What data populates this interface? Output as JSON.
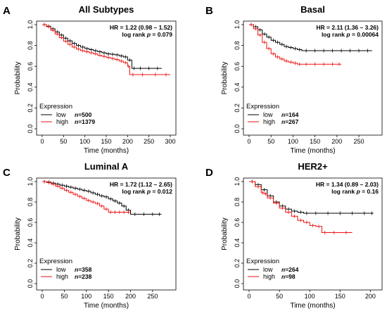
{
  "colors": {
    "low": "#000000",
    "high": "#ee1111",
    "axis": "#000000"
  },
  "chart_data": [
    {
      "type": "line",
      "panel_letter": "A",
      "title": "All Subtypes",
      "xlabel": "Time (months)",
      "ylabel": "Probability",
      "xlim": [
        0,
        300
      ],
      "ylim": [
        0,
        1
      ],
      "xticks": [
        0,
        50,
        100,
        150,
        200,
        250,
        300
      ],
      "xtick_labels": [
        "0",
        "50",
        "100",
        "150",
        "200",
        "250",
        "300"
      ],
      "yticks": [
        0,
        0.2,
        0.4,
        0.6,
        0.8,
        1.0
      ],
      "ytick_labels": [
        "0.0",
        "0.2",
        "0.4",
        "0.6",
        "0.8",
        "1.0"
      ],
      "hr_text": "HR = 1.22 (0.98 – 1.52)",
      "logrank_label": "log rank ",
      "logrank_p_label": "p",
      "logrank_value": " = 0.079",
      "legend": {
        "title": "Expression",
        "n_label": "n",
        "entries": [
          {
            "label": "low",
            "n": "=500"
          },
          {
            "label": "high",
            "n": "=1379"
          }
        ]
      },
      "series": [
        {
          "name": "low",
          "x": [
            0,
            10,
            20,
            30,
            40,
            50,
            60,
            70,
            80,
            90,
            100,
            110,
            120,
            130,
            140,
            150,
            160,
            170,
            180,
            190,
            200,
            210,
            220,
            240,
            260,
            280
          ],
          "y": [
            1.0,
            0.985,
            0.96,
            0.93,
            0.9,
            0.87,
            0.845,
            0.82,
            0.8,
            0.785,
            0.77,
            0.76,
            0.75,
            0.74,
            0.73,
            0.72,
            0.715,
            0.71,
            0.7,
            0.69,
            0.66,
            0.58,
            0.58,
            0.58,
            0.58,
            0.58
          ]
        },
        {
          "name": "high",
          "x": [
            0,
            10,
            20,
            30,
            40,
            50,
            60,
            70,
            80,
            90,
            100,
            110,
            120,
            130,
            140,
            150,
            160,
            170,
            180,
            190,
            200,
            205,
            220,
            250,
            280,
            300
          ],
          "y": [
            1.0,
            0.98,
            0.945,
            0.91,
            0.875,
            0.84,
            0.81,
            0.785,
            0.765,
            0.75,
            0.74,
            0.73,
            0.72,
            0.705,
            0.695,
            0.685,
            0.675,
            0.665,
            0.65,
            0.635,
            0.6,
            0.52,
            0.52,
            0.52,
            0.52,
            0.52
          ]
        }
      ]
    },
    {
      "type": "line",
      "panel_letter": "B",
      "title": "Basal",
      "xlabel": "Time (months)",
      "ylabel": "Probability",
      "xlim": [
        0,
        290
      ],
      "ylim": [
        0,
        1
      ],
      "xticks": [
        0,
        50,
        100,
        150,
        200,
        250
      ],
      "xtick_labels": [
        "0",
        "50",
        "100",
        "150",
        "200",
        "250"
      ],
      "yticks": [
        0,
        0.2,
        0.4,
        0.6,
        0.8,
        1.0
      ],
      "ytick_labels": [
        "0.0",
        "0.2",
        "0.4",
        "0.6",
        "0.8",
        "1.0"
      ],
      "hr_text": "HR = 2.11 (1.36 – 3.26)",
      "logrank_label": "log rank ",
      "logrank_p_label": "p",
      "logrank_value": " = 0.00064",
      "legend": {
        "title": "Expression",
        "n_label": "n",
        "entries": [
          {
            "label": "low",
            "n": "=164"
          },
          {
            "label": "high",
            "n": "=267"
          }
        ]
      },
      "series": [
        {
          "name": "low",
          "x": [
            0,
            10,
            20,
            30,
            40,
            50,
            60,
            70,
            80,
            90,
            100,
            110,
            120,
            140,
            160,
            180,
            200,
            220,
            240,
            260,
            280
          ],
          "y": [
            1.0,
            0.98,
            0.95,
            0.91,
            0.88,
            0.85,
            0.83,
            0.81,
            0.79,
            0.78,
            0.77,
            0.76,
            0.75,
            0.75,
            0.75,
            0.75,
            0.75,
            0.75,
            0.75,
            0.75,
            0.75
          ]
        },
        {
          "name": "high",
          "x": [
            0,
            10,
            20,
            30,
            40,
            50,
            60,
            70,
            80,
            90,
            100,
            110,
            120,
            140,
            160,
            180,
            200,
            210
          ],
          "y": [
            1.0,
            0.96,
            0.9,
            0.83,
            0.77,
            0.72,
            0.69,
            0.67,
            0.65,
            0.64,
            0.63,
            0.62,
            0.62,
            0.62,
            0.62,
            0.62,
            0.62,
            0.62
          ]
        }
      ]
    },
    {
      "type": "line",
      "panel_letter": "C",
      "title": "Luminal A",
      "xlabel": "Time (months)",
      "ylabel": "Probability",
      "xlim": [
        0,
        290
      ],
      "ylim": [
        0,
        1
      ],
      "xticks": [
        0,
        50,
        100,
        150,
        200,
        250
      ],
      "xtick_labels": [
        "0",
        "50",
        "100",
        "150",
        "200",
        "250"
      ],
      "yticks": [
        0,
        0.2,
        0.4,
        0.6,
        0.8,
        1.0
      ],
      "ytick_labels": [
        "0.0",
        "0.2",
        "0.4",
        "0.6",
        "0.8",
        "1.0"
      ],
      "hr_text": "HR = 1.72 (1.12 – 2.65)",
      "logrank_label": "log rank ",
      "logrank_p_label": "p",
      "logrank_value": " = 0.012",
      "legend": {
        "title": "Expression",
        "n_label": "n",
        "entries": [
          {
            "label": "low",
            "n": "=358"
          },
          {
            "label": "high",
            "n": "=238"
          }
        ]
      },
      "series": [
        {
          "name": "low",
          "x": [
            0,
            10,
            20,
            30,
            40,
            50,
            60,
            70,
            80,
            90,
            100,
            110,
            120,
            130,
            140,
            150,
            160,
            170,
            180,
            190,
            200,
            220,
            240,
            260,
            270
          ],
          "y": [
            1.0,
            0.995,
            0.985,
            0.975,
            0.965,
            0.955,
            0.945,
            0.935,
            0.925,
            0.915,
            0.905,
            0.89,
            0.875,
            0.86,
            0.85,
            0.83,
            0.81,
            0.79,
            0.76,
            0.72,
            0.68,
            0.68,
            0.68,
            0.68,
            0.68
          ]
        },
        {
          "name": "high",
          "x": [
            0,
            10,
            20,
            30,
            40,
            50,
            60,
            70,
            80,
            90,
            100,
            110,
            120,
            130,
            140,
            150,
            160,
            170,
            180,
            190,
            200
          ],
          "y": [
            1.0,
            0.99,
            0.975,
            0.955,
            0.935,
            0.915,
            0.895,
            0.875,
            0.855,
            0.835,
            0.815,
            0.8,
            0.785,
            0.76,
            0.73,
            0.7,
            0.7,
            0.7,
            0.7,
            0.7,
            0.7
          ]
        }
      ]
    },
    {
      "type": "line",
      "panel_letter": "D",
      "title": "HER2+",
      "xlabel": "Time (months)",
      "ylabel": "Probability",
      "xlim": [
        0,
        210
      ],
      "ylim": [
        0,
        1
      ],
      "xticks": [
        0,
        50,
        100,
        150,
        200
      ],
      "xtick_labels": [
        "0",
        "50",
        "100",
        "150",
        "200"
      ],
      "yticks": [
        0,
        0.2,
        0.4,
        0.6,
        0.8,
        1.0
      ],
      "ytick_labels": [
        "0.0",
        "0.2",
        "0.4",
        "0.6",
        "0.8",
        "1.0"
      ],
      "hr_text": "HR = 1.34 (0.89 – 2.03)",
      "logrank_label": "log rank ",
      "logrank_p_label": "p",
      "logrank_value": " = 0.16",
      "legend": {
        "title": "Expression",
        "n_label": "n",
        "entries": [
          {
            "label": "low",
            "n": "=264"
          },
          {
            "label": "high",
            "n": "=98"
          }
        ]
      },
      "series": [
        {
          "name": "low",
          "x": [
            0,
            10,
            20,
            30,
            40,
            50,
            60,
            70,
            80,
            90,
            100,
            120,
            140,
            160,
            180,
            200,
            205
          ],
          "y": [
            1.0,
            0.97,
            0.92,
            0.86,
            0.8,
            0.76,
            0.73,
            0.71,
            0.7,
            0.69,
            0.69,
            0.69,
            0.69,
            0.69,
            0.69,
            0.69,
            0.69
          ]
        },
        {
          "name": "high",
          "x": [
            0,
            10,
            20,
            25,
            30,
            40,
            50,
            60,
            70,
            80,
            90,
            100,
            110,
            120,
            130,
            150,
            170
          ],
          "y": [
            1.0,
            0.95,
            0.89,
            0.88,
            0.84,
            0.79,
            0.74,
            0.7,
            0.66,
            0.62,
            0.6,
            0.57,
            0.56,
            0.5,
            0.5,
            0.5,
            0.5
          ]
        }
      ]
    }
  ]
}
